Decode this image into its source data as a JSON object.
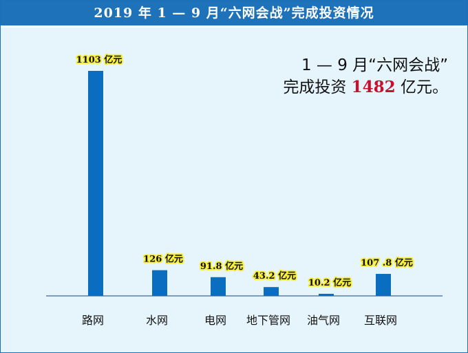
{
  "header": {
    "title": "2019 年 1 — 9 月“六网会战”完成投资情况"
  },
  "summary": {
    "line1": "1 — 9 月“六网会战”",
    "line2_prefix": "完成投资",
    "highlight": "1482",
    "line2_suffix": "亿元。"
  },
  "colors": {
    "bar": "#0a6dbf",
    "title_bg": "#1e72b9",
    "background": "#e6f4fb",
    "label_halo": "#f7ef3c",
    "highlight": "#c8102e"
  },
  "chart_data": {
    "type": "bar",
    "title": "2019 年 1 — 9 月“六网会战”完成投资情况",
    "categories": [
      "路网",
      "水网",
      "电网",
      "地下管网",
      "油气网",
      "互联网"
    ],
    "values": [
      1103,
      126,
      91.8,
      43.2,
      10.2,
      107.8
    ],
    "value_labels": [
      "1103 亿元",
      "126 亿元",
      "91.8 亿元",
      "43.2 亿元",
      "10.2 亿元",
      "107 .8 亿元"
    ],
    "xlabel": "",
    "ylabel": "",
    "grid": false,
    "legend": "none"
  }
}
